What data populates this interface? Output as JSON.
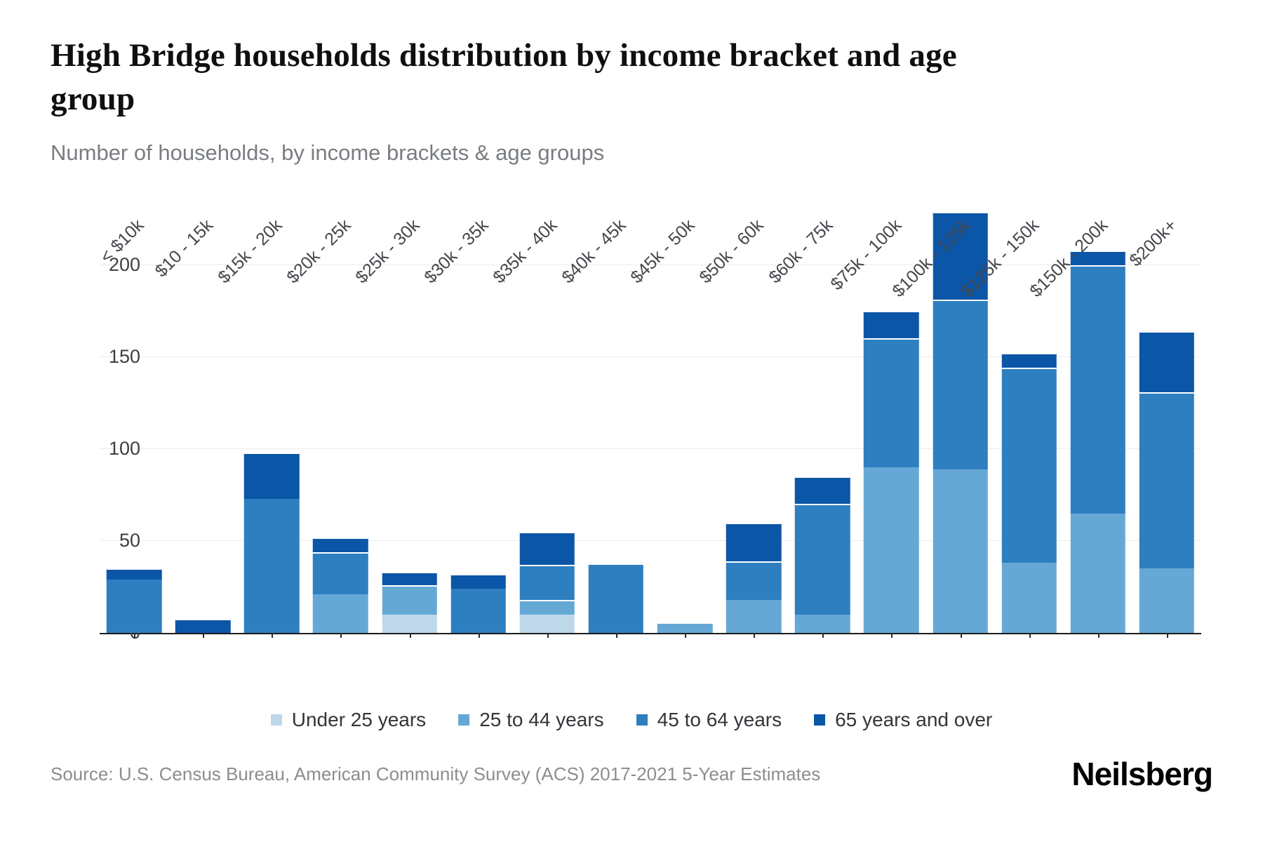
{
  "title": "High Bridge households distribution by income bracket and age group",
  "subtitle": "Number of households, by income brackets & age groups",
  "source": "Source: U.S. Census Bureau, American Community Survey (ACS) 2017-2021 5-Year Estimates",
  "brand": "Neilsberg",
  "chart_data": {
    "type": "bar",
    "stacked": true,
    "title": "High Bridge households distribution by income bracket and age group",
    "xlabel": "",
    "ylabel": "Number of households",
    "ylim": [
      0,
      233
    ],
    "yticks": [
      0,
      50,
      100,
      150,
      200
    ],
    "grid": true,
    "legend_position": "bottom",
    "categories": [
      "< $10k",
      "$10 - 15k",
      "$15k - 20k",
      "$20k - 25k",
      "$25k - 30k",
      "$30k - 35k",
      "$35k - 40k",
      "$40k - 45k",
      "$45k - 50k",
      "$50k - 60k",
      "$60k - 75k",
      "$75k - 100k",
      "$100k - 125k",
      "$125k - 150k",
      "$150k - 200k",
      "$200k+"
    ],
    "series": [
      {
        "name": "Under 25 years",
        "color": "#bed8ea",
        "values": [
          0,
          0,
          0,
          0,
          10,
          0,
          10,
          0,
          0,
          0,
          0,
          0,
          0,
          0,
          0,
          0
        ]
      },
      {
        "name": "25 to 44 years",
        "color": "#66a8d5",
        "values": [
          0,
          0,
          0,
          21,
          16,
          0,
          8,
          0,
          5,
          18,
          10,
          90,
          89,
          38,
          65,
          35
        ]
      },
      {
        "name": "45 to 64 years",
        "color": "#2e7fc0",
        "values": [
          29,
          0,
          73,
          23,
          0,
          24,
          19,
          37,
          0,
          21,
          60,
          70,
          92,
          106,
          135,
          96
        ]
      },
      {
        "name": "65 years and over",
        "color": "#0b56a7",
        "values": [
          6,
          7,
          25,
          8,
          7,
          8,
          18,
          0,
          0,
          21,
          15,
          15,
          48,
          8,
          8,
          33
        ]
      }
    ],
    "totals": [
      35,
      7,
      98,
      52,
      33,
      32,
      55,
      37,
      5,
      60,
      85,
      175,
      229,
      152,
      208,
      164
    ]
  }
}
